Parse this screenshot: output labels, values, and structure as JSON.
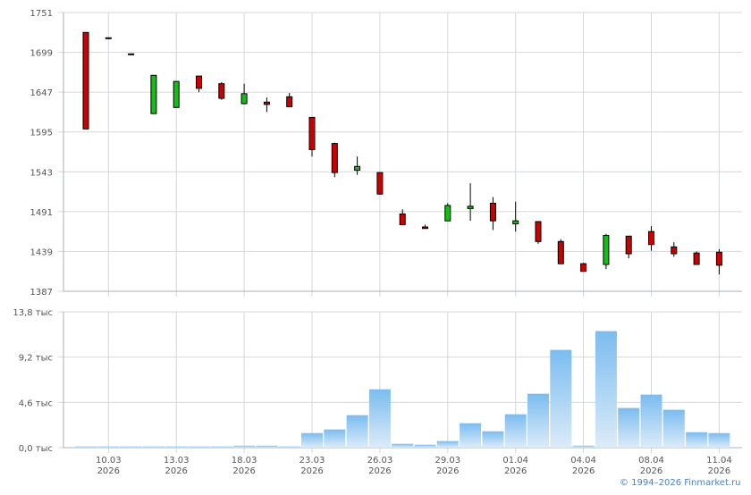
{
  "chart_data": [
    {
      "type": "candlestick",
      "ylim": [
        1387,
        1751
      ],
      "yticks": [
        "1751",
        "1699",
        "1647",
        "1595",
        "1543",
        "1491",
        "1439",
        "1387"
      ],
      "yticks_values": [
        1751,
        1699,
        1647,
        1595,
        1543,
        1491,
        1439,
        1387
      ],
      "grid": true,
      "colors": {
        "up": "#11c011",
        "down": "#cc0000",
        "outline": "#000000"
      },
      "candles": [
        {
          "o": 1725,
          "h": 1725,
          "l": 1599,
          "c": 1599
        },
        {
          "o": 1718,
          "h": 1718,
          "l": 1718,
          "c": 1718
        },
        {
          "o": 1697,
          "h": 1697,
          "l": 1696,
          "c": 1696
        },
        {
          "o": 1619,
          "h": 1669,
          "l": 1619,
          "c": 1669
        },
        {
          "o": 1627,
          "h": 1661,
          "l": 1627,
          "c": 1661
        },
        {
          "o": 1668,
          "h": 1668,
          "l": 1647,
          "c": 1652
        },
        {
          "o": 1658,
          "h": 1660,
          "l": 1637,
          "c": 1639
        },
        {
          "o": 1632,
          "h": 1658,
          "l": 1631,
          "c": 1645
        },
        {
          "o": 1634,
          "h": 1640,
          "l": 1621,
          "c": 1631
        },
        {
          "o": 1641,
          "h": 1646,
          "l": 1628,
          "c": 1628
        },
        {
          "o": 1614,
          "h": 1614,
          "l": 1563,
          "c": 1572
        },
        {
          "o": 1580,
          "h": 1581,
          "l": 1536,
          "c": 1542
        },
        {
          "o": 1545,
          "h": 1563,
          "l": 1539,
          "c": 1550
        },
        {
          "o": 1542,
          "h": 1542,
          "l": 1513,
          "c": 1514
        },
        {
          "o": 1488,
          "h": 1494,
          "l": 1473,
          "c": 1474
        },
        {
          "o": 1471,
          "h": 1474,
          "l": 1469,
          "c": 1469
        },
        {
          "o": 1479,
          "h": 1502,
          "l": 1479,
          "c": 1499
        },
        {
          "o": 1495,
          "h": 1528,
          "l": 1479,
          "c": 1498
        },
        {
          "o": 1502,
          "h": 1510,
          "l": 1467,
          "c": 1479
        },
        {
          "o": 1475,
          "h": 1504,
          "l": 1465,
          "c": 1479
        },
        {
          "o": 1478,
          "h": 1478,
          "l": 1449,
          "c": 1452
        },
        {
          "o": 1452,
          "h": 1455,
          "l": 1423,
          "c": 1423
        },
        {
          "o": 1423,
          "h": 1424,
          "l": 1413,
          "c": 1413
        },
        {
          "o": 1422,
          "h": 1462,
          "l": 1416,
          "c": 1460
        },
        {
          "o": 1459,
          "h": 1459,
          "l": 1430,
          "c": 1436
        },
        {
          "o": 1465,
          "h": 1472,
          "l": 1440,
          "c": 1448
        },
        {
          "o": 1445,
          "h": 1451,
          "l": 1432,
          "c": 1436
        },
        {
          "o": 1437,
          "h": 1439,
          "l": 1422,
          "c": 1422
        },
        {
          "o": 1438,
          "h": 1442,
          "l": 1409,
          "c": 1421
        }
      ]
    },
    {
      "type": "bar",
      "ylim": [
        0,
        13.8
      ],
      "yticks": [
        "13,8 тыс",
        "9,2 тыс",
        "4,6 тыс",
        "0,0 тыс"
      ],
      "yticks_values": [
        13.8,
        9.2,
        4.6,
        0
      ],
      "grid": true,
      "bar_color": "#7bbcf0",
      "values": [
        0.12,
        0.12,
        0.12,
        0.12,
        0.12,
        0.12,
        0.12,
        0.2,
        0.2,
        0.12,
        1.48,
        1.85,
        3.3,
        5.93,
        0.39,
        0.3,
        0.67,
        2.48,
        1.66,
        3.39,
        5.48,
        9.93,
        0.2,
        11.84,
        4.03,
        5.39,
        3.85,
        1.57,
        1.48
      ]
    }
  ],
  "xticks": [
    {
      "index": 1,
      "day": "10.03",
      "year": "2026"
    },
    {
      "index": 4,
      "day": "13.03",
      "year": "2026"
    },
    {
      "index": 7,
      "day": "18.03",
      "year": "2026"
    },
    {
      "index": 10,
      "day": "23.03",
      "year": "2026"
    },
    {
      "index": 13,
      "day": "26.03",
      "year": "2026"
    },
    {
      "index": 16,
      "day": "29.03",
      "year": "2026"
    },
    {
      "index": 19,
      "day": "01.04",
      "year": "2026"
    },
    {
      "index": 22,
      "day": "04.04",
      "year": "2026"
    },
    {
      "index": 25,
      "day": "08.04",
      "year": "2026"
    },
    {
      "index": 28,
      "day": "11.04",
      "year": "2026"
    }
  ],
  "footer": {
    "copyright": "© 1994–2026 Finmarket.ru"
  }
}
